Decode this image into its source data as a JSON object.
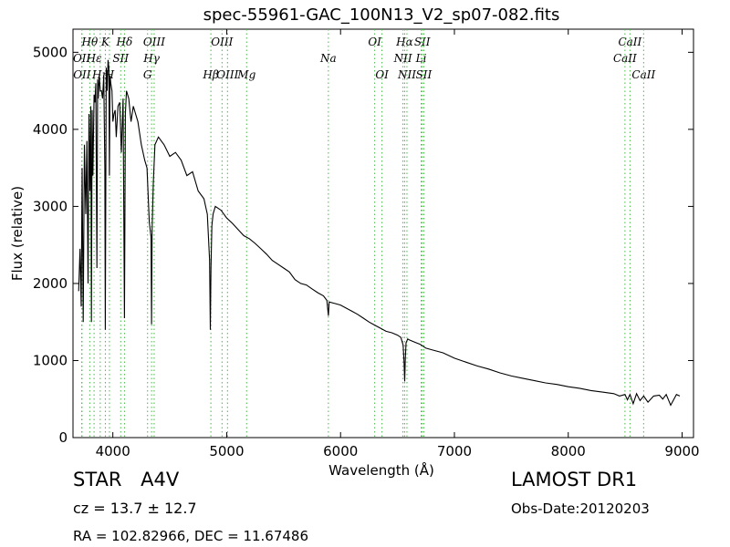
{
  "chart_data": {
    "type": "line",
    "title": "spec-55961-GAC_100N13_V2_sp07-082.fits",
    "xlabel": "Wavelength (Å)",
    "ylabel": "Flux (relative)",
    "xlim": [
      3650,
      9100
    ],
    "ylim": [
      0,
      5300
    ],
    "xticks": [
      4000,
      5000,
      6000,
      7000,
      8000,
      9000
    ],
    "yticks": [
      0,
      1000,
      2000,
      3000,
      4000,
      5000
    ],
    "line_color": "#000000",
    "marker_color": "#44bb44",
    "series": [
      {
        "x": [
          3700,
          3712,
          3722,
          3730,
          3740,
          3750,
          3762,
          3772,
          3782,
          3790,
          3798,
          3806,
          3812,
          3818,
          3825,
          3835,
          3842,
          3850,
          3860,
          3866,
          3872,
          3880,
          3890,
          3900,
          3910,
          3920,
          3930,
          3934,
          3942,
          3950,
          3958,
          3965,
          3970,
          3975,
          3982,
          3992,
          4000,
          4010,
          4020,
          4030,
          4045,
          4060,
          4075,
          4090,
          4102,
          4110,
          4120,
          4140,
          4160,
          4180,
          4200,
          4220,
          4250,
          4280,
          4300,
          4320,
          4335,
          4340,
          4345,
          4355,
          4370,
          4400,
          4450,
          4500,
          4550,
          4600,
          4650,
          4700,
          4750,
          4800,
          4830,
          4850,
          4856,
          4862,
          4870,
          4880,
          4900,
          4950,
          5000,
          5050,
          5100,
          5150,
          5200,
          5250,
          5300,
          5350,
          5400,
          5450,
          5500,
          5550,
          5600,
          5650,
          5700,
          5750,
          5800,
          5850,
          5880,
          5893,
          5900,
          5950,
          6000,
          6050,
          6100,
          6150,
          6200,
          6250,
          6300,
          6350,
          6400,
          6450,
          6500,
          6530,
          6550,
          6558,
          6563,
          6568,
          6575,
          6590,
          6600,
          6650,
          6700,
          6750,
          6800,
          6900,
          7000,
          7100,
          7200,
          7300,
          7400,
          7500,
          7600,
          7700,
          7800,
          7900,
          8000,
          8100,
          8200,
          8300,
          8400,
          8450,
          8498,
          8520,
          8542,
          8570,
          8600,
          8630,
          8662,
          8700,
          8750,
          8800,
          8830,
          8860,
          8900,
          8950,
          8980
        ],
        "y": [
          1900,
          2450,
          1700,
          3500,
          1500,
          3800,
          2900,
          3850,
          2000,
          4200,
          3200,
          4300,
          1500,
          4250,
          3400,
          4450,
          4350,
          4600,
          2200,
          4650,
          4400,
          4700,
          4500,
          4500,
          4400,
          4700,
          3500,
          1400,
          4800,
          4500,
          4900,
          4800,
          3400,
          4700,
          4600,
          4500,
          4100,
          4200,
          4250,
          3900,
          4300,
          4350,
          3700,
          4400,
          1550,
          4200,
          4500,
          4400,
          4100,
          4300,
          4200,
          4100,
          3800,
          3600,
          3500,
          2800,
          2600,
          1470,
          2700,
          3300,
          3800,
          3900,
          3800,
          3650,
          3700,
          3600,
          3400,
          3450,
          3200,
          3100,
          2900,
          2300,
          1400,
          2200,
          2750,
          2900,
          3000,
          2950,
          2850,
          2780,
          2700,
          2620,
          2580,
          2520,
          2450,
          2380,
          2300,
          2250,
          2200,
          2150,
          2050,
          2000,
          1980,
          1930,
          1880,
          1840,
          1780,
          1580,
          1760,
          1740,
          1720,
          1680,
          1640,
          1600,
          1550,
          1500,
          1460,
          1420,
          1380,
          1360,
          1330,
          1300,
          1200,
          980,
          730,
          1000,
          1230,
          1280,
          1270,
          1240,
          1210,
          1160,
          1140,
          1100,
          1030,
          980,
          930,
          890,
          840,
          800,
          770,
          740,
          710,
          690,
          660,
          640,
          610,
          590,
          570,
          540,
          560,
          490,
          560,
          440,
          570,
          480,
          540,
          460,
          540,
          550,
          500,
          560,
          420,
          560,
          540
        ]
      }
    ],
    "line_markers": [
      {
        "label": "Hθ",
        "x": 3797,
        "row": 0
      },
      {
        "label": "K",
        "x": 3934,
        "row": 0
      },
      {
        "label": "Hδ",
        "x": 4102,
        "row": 0
      },
      {
        "label": "OIII",
        "x": 4363,
        "row": 0
      },
      {
        "label": "OIII",
        "x": 4959,
        "row": 0
      },
      {
        "label": "OI",
        "x": 6300,
        "row": 0
      },
      {
        "label": "Hα",
        "x": 6563,
        "row": 0
      },
      {
        "label": "SII",
        "x": 6717,
        "row": 0
      },
      {
        "label": "CaII",
        "x": 8542,
        "row": 0
      },
      {
        "label": "OII",
        "x": 3727,
        "row": 1
      },
      {
        "label": "Hε",
        "x": 3835,
        "row": 1
      },
      {
        "label": "SII",
        "x": 4069,
        "row": 1
      },
      {
        "label": "Hγ",
        "x": 4340,
        "row": 1
      },
      {
        "label": "Na",
        "x": 5893,
        "row": 1
      },
      {
        "label": "NII",
        "x": 6548,
        "row": 1
      },
      {
        "label": "Li",
        "x": 6708,
        "row": 1
      },
      {
        "label": "CaII",
        "x": 8498,
        "row": 1
      },
      {
        "label": "OII",
        "x": 3729,
        "row": 2
      },
      {
        "label": "Hη",
        "x": 3889,
        "row": 2
      },
      {
        "label": "H",
        "x": 3970,
        "row": 2
      },
      {
        "label": "G",
        "x": 4305,
        "row": 2
      },
      {
        "label": "Hβ",
        "x": 4861,
        "row": 2
      },
      {
        "label": "OIII",
        "x": 5007,
        "row": 2
      },
      {
        "label": "Mg",
        "x": 5175,
        "row": 2
      },
      {
        "label": "OI",
        "x": 6364,
        "row": 2
      },
      {
        "label": "NII",
        "x": 6583,
        "row": 2
      },
      {
        "label": "SII",
        "x": 6731,
        "row": 2
      },
      {
        "label": "CaII",
        "x": 8662,
        "row": 2
      }
    ]
  },
  "info": {
    "object_class": "STAR",
    "subclass": "A4V",
    "survey": "LAMOST DR1",
    "cz": "cz = 13.7 ± 12.7",
    "obs_date": "Obs-Date:20120203",
    "coords": "RA = 102.82966, DEC = 11.67486"
  }
}
